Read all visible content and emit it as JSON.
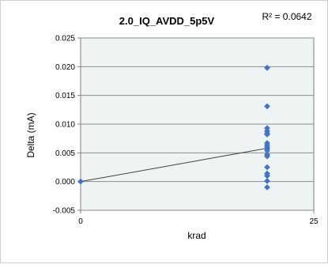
{
  "chart_data": {
    "type": "scatter",
    "title": "2.0_IQ_AVDD_5p5V",
    "xlabel": "krad",
    "ylabel": "Delta (mA)",
    "xlim": [
      0,
      25
    ],
    "ylim": [
      -0.005,
      0.025
    ],
    "x_ticks": [
      "0",
      "25"
    ],
    "y_ticks": [
      "0.025",
      "0.020",
      "0.015",
      "0.010",
      "0.005",
      "0.000",
      "-0.005"
    ],
    "y_tick_values": [
      0.025,
      0.02,
      0.015,
      0.01,
      0.005,
      0.0,
      -0.005
    ],
    "grid": true,
    "series": [
      {
        "marker_color": "#4472C4",
        "points": [
          [
            0,
            0.0
          ],
          [
            20,
            0.0198
          ],
          [
            20,
            0.0131
          ],
          [
            20,
            0.0093
          ],
          [
            20,
            0.0088
          ],
          [
            20,
            0.0084
          ],
          [
            20,
            0.0082
          ],
          [
            20,
            0.0067
          ],
          [
            20,
            0.0063
          ],
          [
            20,
            0.006
          ],
          [
            20,
            0.0057
          ],
          [
            20,
            0.0054
          ],
          [
            20,
            0.0047
          ],
          [
            20,
            0.0044
          ],
          [
            20,
            0.0025
          ],
          [
            20,
            0.0014
          ],
          [
            20,
            0.001
          ],
          [
            20,
            0.0001
          ],
          [
            20,
            -0.001
          ]
        ]
      }
    ],
    "trendline": {
      "type": "linear",
      "r2_label": "R² = 0.0642",
      "start": [
        0,
        0.0
      ],
      "end": [
        20,
        0.0058
      ],
      "color": "#404040"
    },
    "plot_background": "#EEF3F3",
    "gridline_color": "#8C8C8C"
  }
}
